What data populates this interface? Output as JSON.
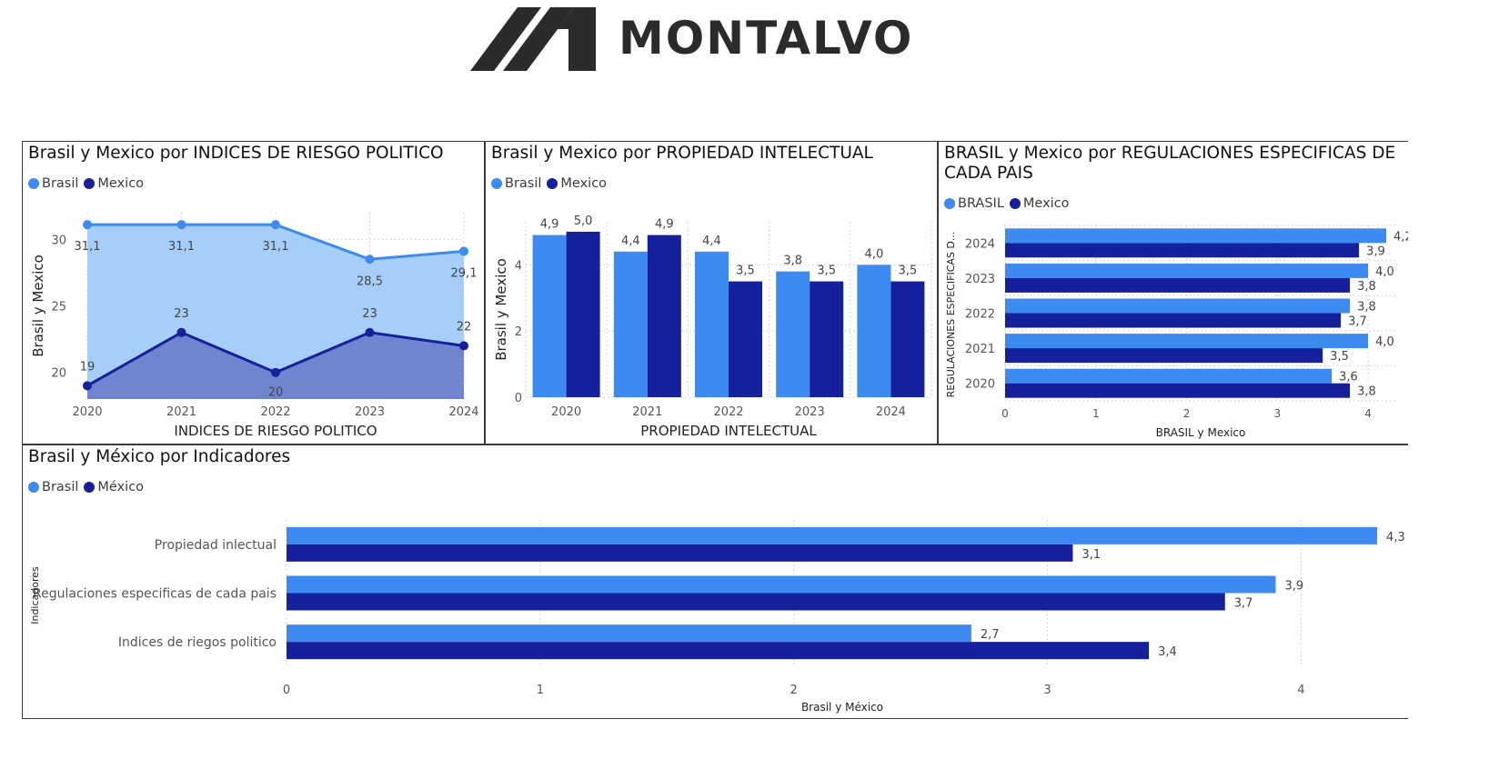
{
  "logo": {
    "text": "MONTALVO"
  },
  "colors": {
    "brasil": "#3d8af0",
    "mexico": "#15209a",
    "brasil_area": "#a7cdf9",
    "mexico_area": "#6f85d0"
  },
  "charts": {
    "c1": {
      "title": "Brasil y Mexico por INDICES DE RIESGO POLITICO",
      "legend": [
        "Brasil",
        "Mexico"
      ],
      "ylabel": "Brasil y Mexico",
      "xlabel": "INDICES DE RIESGO POLITICO",
      "yticks": [
        "20",
        "25",
        "30"
      ],
      "categories": [
        "2020",
        "2021",
        "2022",
        "2023",
        "2024"
      ],
      "brasil_labels": [
        "31,1",
        "31,1",
        "31,1",
        "28,5",
        "29,1"
      ],
      "mexico_labels": [
        "19",
        "23",
        "20",
        "23",
        "22"
      ]
    },
    "c2": {
      "title": "Brasil y Mexico por PROPIEDAD INTELECTUAL",
      "legend": [
        "Brasil",
        "Mexico"
      ],
      "ylabel": "Brasil y Mexico",
      "xlabel": "PROPIEDAD INTELECTUAL",
      "yticks": [
        "0",
        "2",
        "4"
      ],
      "categories": [
        "2020",
        "2021",
        "2022",
        "2023",
        "2024"
      ],
      "brasil_labels": [
        "4,9",
        "4,4",
        "4,4",
        "3,8",
        "4,0"
      ],
      "mexico_labels": [
        "5,0",
        "4,9",
        "3,5",
        "3,5",
        "3,5"
      ]
    },
    "c3": {
      "title_line1": "BRASIL y Mexico por REGULACIONES ESPECIFICAS DE",
      "title_line2": "CADA PAIS",
      "legend": [
        "BRASIL",
        "Mexico"
      ],
      "ylabel": "REGULACIONES ESPECIFICAS D...",
      "xlabel": "BRASIL y Mexico",
      "xticks": [
        "0",
        "1",
        "2",
        "3",
        "4"
      ],
      "categories": [
        "2024",
        "2023",
        "2022",
        "2021",
        "2020"
      ],
      "brasil_labels": [
        "4,2",
        "4,0",
        "3,8",
        "4,0",
        "3,6"
      ],
      "mexico_labels": [
        "3,9",
        "3,8",
        "3,7",
        "3,5",
        "3,8"
      ]
    },
    "c4": {
      "title": "Brasil y México por Indicadores",
      "legend": [
        "Brasil",
        "México"
      ],
      "ylabel": "Indicadores",
      "xlabel": "Brasil y México",
      "xticks": [
        "0",
        "1",
        "2",
        "3",
        "4"
      ],
      "categories": [
        "Propiedad inlectual",
        "Regulaciones especificas de cada pais",
        "Indices de riegos politico"
      ],
      "brasil_labels": [
        "4,3",
        "3,9",
        "2,7"
      ],
      "mexico_labels": [
        "3,1",
        "3,7",
        "3,4"
      ]
    }
  },
  "chart_data": [
    {
      "type": "area",
      "title": "Brasil y Mexico por INDICES DE RIESGO POLITICO",
      "xlabel": "INDICES DE RIESGO POLITICO",
      "ylabel": "Brasil y Mexico",
      "x": [
        2020,
        2021,
        2022,
        2023,
        2024
      ],
      "ylim": [
        18,
        32
      ],
      "grid": true,
      "legend": "top-left",
      "series": [
        {
          "name": "Brasil",
          "values": [
            31.1,
            31.1,
            31.1,
            28.5,
            29.1
          ]
        },
        {
          "name": "Mexico",
          "values": [
            19,
            23,
            20,
            23,
            22
          ]
        }
      ]
    },
    {
      "type": "bar",
      "title": "Brasil y Mexico por PROPIEDAD INTELECTUAL",
      "xlabel": "PROPIEDAD INTELECTUAL",
      "ylabel": "Brasil y Mexico",
      "categories": [
        "2020",
        "2021",
        "2022",
        "2023",
        "2024"
      ],
      "ylim": [
        0,
        5.3
      ],
      "grid": true,
      "legend": "top-left",
      "series": [
        {
          "name": "Brasil",
          "values": [
            4.9,
            4.4,
            4.4,
            3.8,
            4.0
          ]
        },
        {
          "name": "Mexico",
          "values": [
            5.0,
            4.9,
            3.5,
            3.5,
            3.5
          ]
        }
      ]
    },
    {
      "type": "bar",
      "orientation": "horizontal",
      "title": "BRASIL y Mexico por REGULACIONES ESPECIFICAS DE CADA PAIS",
      "xlabel": "BRASIL y Mexico",
      "ylabel": "REGULACIONES ESPECIFICAS D...",
      "categories": [
        "2024",
        "2023",
        "2022",
        "2021",
        "2020"
      ],
      "xlim": [
        0,
        4.3
      ],
      "grid": true,
      "legend": "top-left",
      "series": [
        {
          "name": "BRASIL",
          "values": [
            4.2,
            4.0,
            3.8,
            4.0,
            3.6
          ]
        },
        {
          "name": "Mexico",
          "values": [
            3.9,
            3.8,
            3.7,
            3.5,
            3.8
          ]
        }
      ]
    },
    {
      "type": "bar",
      "orientation": "horizontal",
      "title": "Brasil y México por Indicadores",
      "xlabel": "Brasil y México",
      "ylabel": "Indicadores",
      "categories": [
        "Propiedad inlectual",
        "Regulaciones especificas de cada pais",
        "Indices de riegos politico"
      ],
      "xlim": [
        0,
        4.35
      ],
      "grid": true,
      "legend": "top-left",
      "series": [
        {
          "name": "Brasil",
          "values": [
            4.3,
            3.9,
            2.7
          ]
        },
        {
          "name": "México",
          "values": [
            3.1,
            3.7,
            3.4
          ]
        }
      ]
    }
  ]
}
